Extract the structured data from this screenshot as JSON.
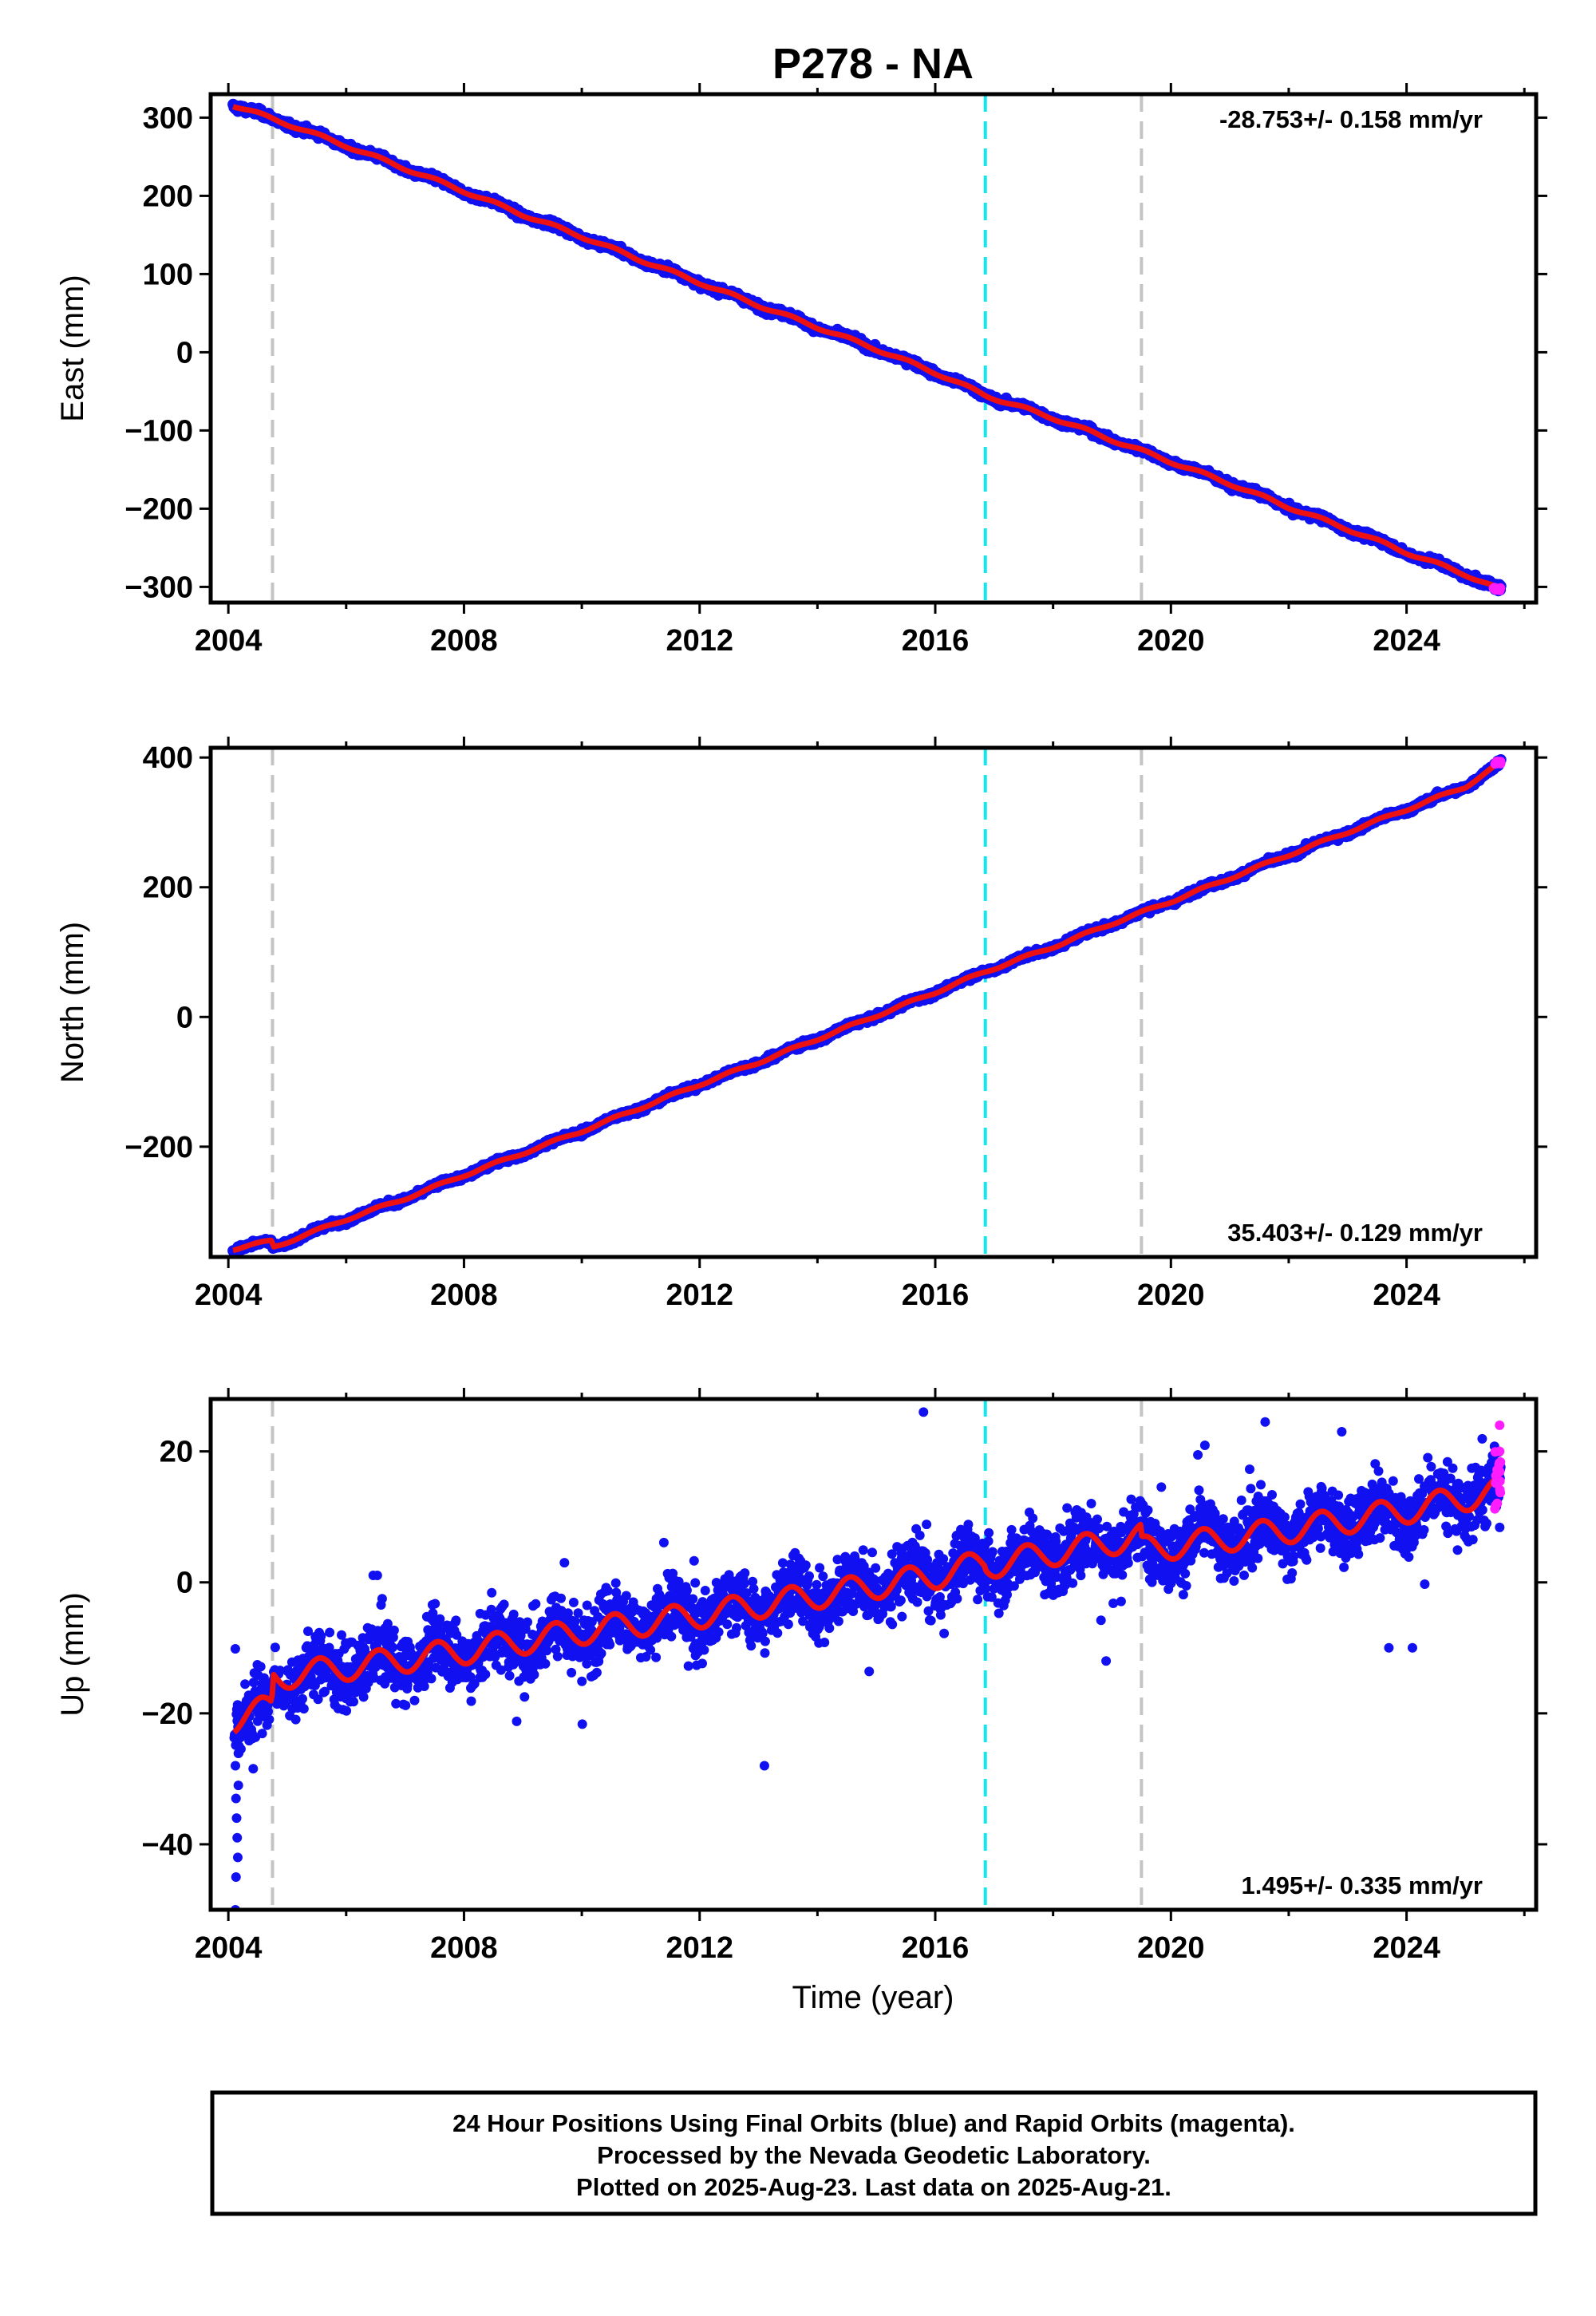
{
  "page": {
    "title": "P278 - NA",
    "xlabel": "Time (year)",
    "footer_lines": [
      "24 Hour Positions Using Final Orbits (blue) and Rapid Orbits (magenta).",
      "Processed by the Nevada Geodetic Laboratory.",
      "Plotted on 2025-Aug-23. Last data on 2025-Aug-21."
    ]
  },
  "colors": {
    "final_orbits": "#1010f0",
    "rapid_orbits": "#ff1cff",
    "model": "#ee1111",
    "cyan_marker": "#10e8f0",
    "gray_marker": "#c4c4c4"
  },
  "chart_data": [
    {
      "type": "scatter",
      "ylabel": "East (mm)",
      "xlim": [
        2003.7,
        2026.2
      ],
      "ylim": [
        -320,
        330
      ],
      "x_ticks": [
        2004,
        2008,
        2012,
        2016,
        2020,
        2024
      ],
      "y_ticks": [
        300,
        200,
        100,
        0,
        -100,
        -200,
        -300
      ],
      "grid": false,
      "annotation": "-28.753+/- 0.158 mm/yr",
      "annotation_position": "top-right",
      "marker_lines": [
        {
          "x": 2004.75,
          "color": "gray"
        },
        {
          "x": 2016.85,
          "color": "cyan"
        },
        {
          "x": 2019.5,
          "color": "gray"
        }
      ],
      "series": [
        {
          "x": [
            2004.08,
            2005,
            2006,
            2007,
            2008,
            2009,
            2010,
            2011,
            2012,
            2013,
            2014,
            2015,
            2016,
            2016.85,
            2018,
            2019,
            2020,
            2021,
            2022,
            2023,
            2024,
            2025,
            2025.6
          ],
          "values": [
            316,
            292,
            264,
            235,
            206,
            176,
            148,
            118,
            89,
            60,
            32,
            4,
            -26,
            -55,
            -84,
            -112,
            -140,
            -168,
            -198,
            -226,
            -256,
            -284,
            -304
          ]
        }
      ],
      "seasonal_amplitude": 2,
      "noise": 4,
      "rapid_points": {
        "x_start": 2025.45,
        "x_end": 2025.6,
        "y_center": -303,
        "spread": 2
      }
    },
    {
      "type": "scatter",
      "ylabel": "North (mm)",
      "xlim": [
        2003.7,
        2026.2
      ],
      "ylim": [
        -370,
        415
      ],
      "x_ticks": [
        2004,
        2008,
        2012,
        2016,
        2020,
        2024
      ],
      "y_ticks": [
        400,
        200,
        0,
        -200
      ],
      "grid": false,
      "annotation": "35.403+/- 0.129 mm/yr",
      "annotation_position": "bottom-right",
      "marker_lines": [
        {
          "x": 2004.75,
          "color": "gray"
        },
        {
          "x": 2016.85,
          "color": "cyan"
        },
        {
          "x": 2019.5,
          "color": "gray"
        }
      ],
      "series": [
        {
          "x": [
            2004.08,
            2004.74,
            2004.76,
            2006,
            2007,
            2008,
            2009,
            2010,
            2011,
            2012,
            2013,
            2014,
            2015,
            2016,
            2016.85,
            2018,
            2019,
            2020,
            2021,
            2022,
            2023,
            2024,
            2025,
            2025.6
          ],
          "values": [
            -358,
            -345,
            -355,
            -312,
            -280,
            -244,
            -210,
            -176,
            -140,
            -104,
            -70,
            -34,
            2,
            38,
            70,
            108,
            144,
            178,
            214,
            250,
            285,
            320,
            355,
            392
          ]
        }
      ],
      "seasonal_amplitude": 2,
      "noise": 4,
      "rapid_points": {
        "x_start": 2025.5,
        "x_end": 2025.6,
        "y_center": 392,
        "spread": 2
      }
    },
    {
      "type": "scatter",
      "ylabel": "Up (mm)",
      "xlim": [
        2003.7,
        2026.2
      ],
      "ylim": [
        -50,
        28
      ],
      "x_ticks": [
        2004,
        2008,
        2012,
        2016,
        2020,
        2024
      ],
      "y_ticks": [
        20,
        0,
        -20,
        -40
      ],
      "grid": false,
      "annotation": "1.495+/- 0.335 mm/yr",
      "annotation_position": "bottom-right",
      "marker_lines": [
        {
          "x": 2004.75,
          "color": "gray"
        },
        {
          "x": 2016.85,
          "color": "cyan"
        },
        {
          "x": 2019.5,
          "color": "gray"
        }
      ],
      "series": [
        {
          "x": [
            2004.1,
            2004.74,
            2004.76,
            2006,
            2008,
            2010,
            2012,
            2014,
            2016,
            2016.84,
            2016.86,
            2018,
            2019.49,
            2019.51,
            2020,
            2022,
            2024,
            2025.6
          ],
          "values": [
            -21,
            -19,
            -14.5,
            -13,
            -10.5,
            -7.5,
            -5,
            -2,
            1,
            3,
            2.5,
            4.5,
            7,
            5,
            5.5,
            8,
            11,
            14
          ]
        }
      ],
      "seasonal_amplitude": 2,
      "noise": 4.5,
      "rapid_points": {
        "x_start": 2025.5,
        "x_end": 2025.6,
        "y_center": 16,
        "spread": 5
      }
    }
  ]
}
